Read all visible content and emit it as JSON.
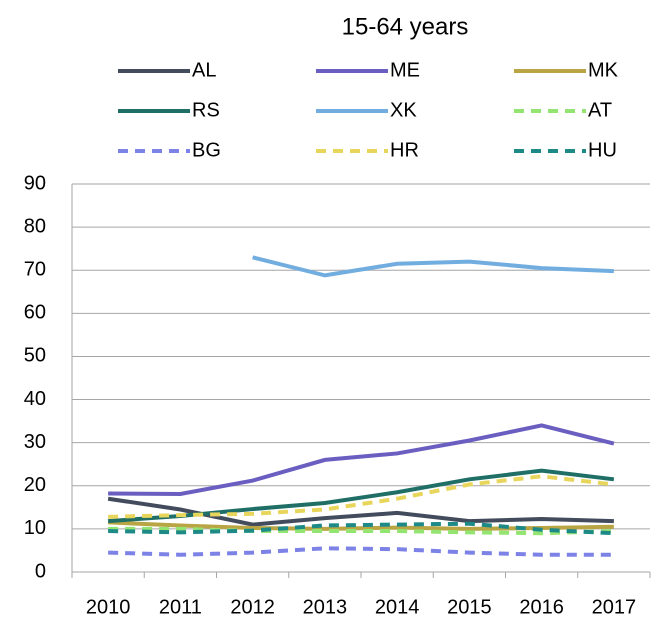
{
  "chart_data": {
    "type": "line",
    "title": "15-64 years",
    "categories": [
      "2010",
      "2011",
      "2012",
      "2013",
      "2014",
      "2015",
      "2016",
      "2017"
    ],
    "ylim": [
      0,
      90
    ],
    "yticks": [
      0,
      10,
      20,
      30,
      40,
      50,
      60,
      70,
      80,
      90
    ],
    "grid": true,
    "series": [
      {
        "name": "AL",
        "color": "#434c5c",
        "dashed": false,
        "values": [
          17,
          14.5,
          11,
          12.5,
          13.7,
          11.8,
          12.3,
          11.8
        ]
      },
      {
        "name": "ME",
        "color": "#6a5fc1",
        "dashed": false,
        "values": [
          18.2,
          18.1,
          21.2,
          26,
          27.5,
          30.5,
          34,
          29.8
        ]
      },
      {
        "name": "MK",
        "color": "#b9a544",
        "dashed": false,
        "values": [
          11.5,
          10.8,
          10.2,
          10,
          10.3,
          10,
          10.2,
          10.5
        ]
      },
      {
        "name": "RS",
        "color": "#1f6f66",
        "dashed": false,
        "values": [
          11.8,
          13,
          14.6,
          16,
          18.5,
          21.5,
          23.5,
          21.5
        ]
      },
      {
        "name": "XK",
        "color": "#72ade0",
        "dashed": false,
        "values": [
          null,
          null,
          73,
          68.8,
          71.5,
          72,
          70.5,
          69.8
        ]
      },
      {
        "name": "AT",
        "color": "#94e472",
        "dashed": true,
        "values": [
          10,
          10,
          9.5,
          9.5,
          9.5,
          9.2,
          9,
          9.5
        ]
      },
      {
        "name": "BG",
        "color": "#7d82e6",
        "dashed": true,
        "values": [
          4.5,
          4,
          4.5,
          5.5,
          5.3,
          4.5,
          4,
          4
        ]
      },
      {
        "name": "HR",
        "color": "#e8d65c",
        "dashed": true,
        "values": [
          12.8,
          13.2,
          13.5,
          14.5,
          17,
          20.3,
          22.2,
          20.3
        ]
      },
      {
        "name": "HU",
        "color": "#1e8a88",
        "dashed": true,
        "values": [
          9.5,
          9.2,
          9.6,
          10.8,
          11,
          11.2,
          9.8,
          9
        ]
      }
    ]
  }
}
